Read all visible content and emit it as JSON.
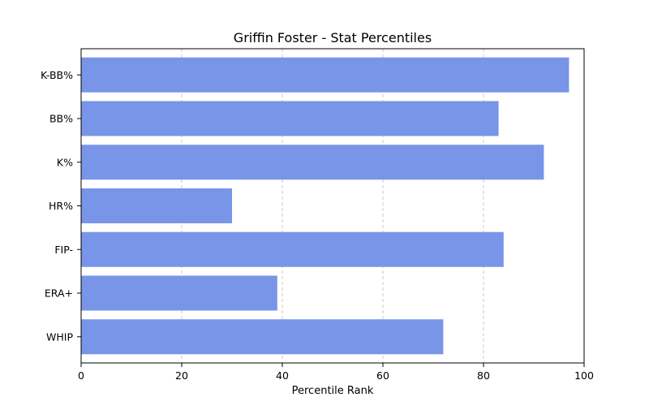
{
  "chart_data": {
    "type": "bar",
    "orientation": "horizontal",
    "title": "Griffin Foster - Stat Percentiles",
    "xlabel": "Percentile Rank",
    "ylabel": "",
    "categories": [
      "K-BB%",
      "BB%",
      "K%",
      "HR%",
      "FIP-",
      "ERA+",
      "WHIP"
    ],
    "values": [
      97,
      83,
      92,
      30,
      84,
      39,
      72
    ],
    "xlim": [
      0,
      100
    ],
    "xticks": [
      0,
      20,
      40,
      60,
      80,
      100
    ],
    "grid": "x-dashed",
    "bar_color": "#7895e8",
    "grid_color": "#c8c8c8"
  }
}
